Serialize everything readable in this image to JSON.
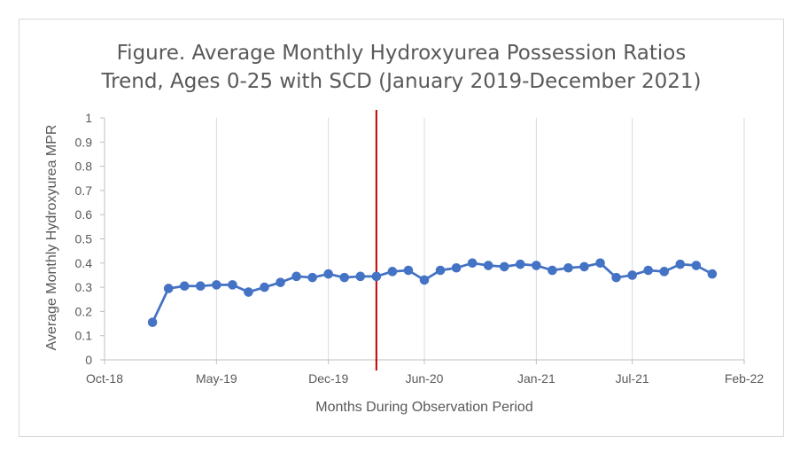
{
  "chart_data": {
    "type": "line",
    "title_line1": "Figure. Average Monthly Hydroxyurea Possession Ratios",
    "title_line2": "Trend, Ages 0-25 with SCD (January 2019-December 2021)",
    "xlabel": "Months During Observation Period",
    "ylabel": "Average Monthly Hydroxyurea MPR",
    "ylim": [
      0,
      1
    ],
    "yticks": [
      "0",
      "0.1",
      "0.2",
      "0.3",
      "0.4",
      "0.5",
      "0.6",
      "0.7",
      "0.8",
      "0.9",
      "1"
    ],
    "xlim": [
      "2018-10",
      "2022-02"
    ],
    "xticks": [
      {
        "date": "2018-10",
        "label": "Oct-18"
      },
      {
        "date": "2019-05",
        "label": "May-19"
      },
      {
        "date": "2019-12",
        "label": "Dec-19"
      },
      {
        "date": "2020-06",
        "label": "Jun-20"
      },
      {
        "date": "2021-01",
        "label": "Jan-21"
      },
      {
        "date": "2021-07",
        "label": "Jul-21"
      },
      {
        "date": "2022-02",
        "label": "Feb-22"
      }
    ],
    "grid": "vertical",
    "series_color": "#4472c4",
    "marker_color": "#4472c4",
    "reference_line": {
      "date": "2020-03",
      "color": "#c00000"
    },
    "series": [
      {
        "x": [
          "2019-01",
          "2019-02",
          "2019-03",
          "2019-04",
          "2019-05",
          "2019-06",
          "2019-07",
          "2019-08",
          "2019-09",
          "2019-10",
          "2019-11",
          "2019-12",
          "2020-01",
          "2020-02",
          "2020-03",
          "2020-04",
          "2020-05",
          "2020-06",
          "2020-07",
          "2020-08",
          "2020-09",
          "2020-10",
          "2020-11",
          "2020-12",
          "2021-01",
          "2021-02",
          "2021-03",
          "2021-04",
          "2021-05",
          "2021-06",
          "2021-07",
          "2021-08",
          "2021-09",
          "2021-10",
          "2021-11",
          "2021-12"
        ],
        "values": [
          0.155,
          0.295,
          0.305,
          0.305,
          0.31,
          0.31,
          0.28,
          0.3,
          0.32,
          0.345,
          0.34,
          0.355,
          0.34,
          0.345,
          0.345,
          0.365,
          0.37,
          0.33,
          0.37,
          0.38,
          0.4,
          0.39,
          0.385,
          0.395,
          0.39,
          0.37,
          0.38,
          0.385,
          0.4,
          0.34,
          0.35,
          0.37,
          0.365,
          0.395,
          0.39,
          0.355
        ]
      }
    ]
  }
}
